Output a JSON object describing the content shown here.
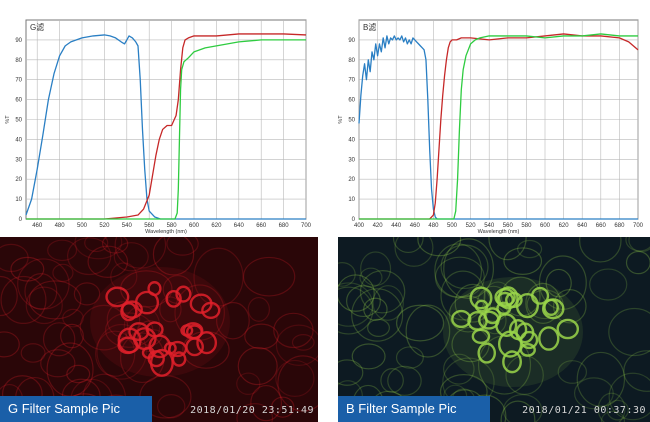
{
  "chart_data": [
    {
      "type": "line",
      "title": "G滤",
      "xlabel": "Wavelength (nm)",
      "ylabel": "%T",
      "xlim": [
        450,
        700
      ],
      "ylim": [
        0,
        100
      ],
      "x_ticks": [
        460,
        480,
        500,
        520,
        540,
        560,
        580,
        600,
        620,
        640,
        660,
        680,
        700
      ],
      "y_ticks": [
        0,
        10,
        20,
        30,
        40,
        50,
        60,
        70,
        80,
        90
      ],
      "grid": true,
      "series": [
        {
          "color": "#2a7fc4",
          "points": [
            [
              450,
              2
            ],
            [
              455,
              10
            ],
            [
              460,
              25
            ],
            [
              465,
              42
            ],
            [
              470,
              60
            ],
            [
              475,
              73
            ],
            [
              480,
              82
            ],
            [
              485,
              87
            ],
            [
              490,
              89
            ],
            [
              495,
              90
            ],
            [
              500,
              91
            ],
            [
              510,
              92
            ],
            [
              520,
              92.5
            ],
            [
              525,
              92
            ],
            [
              530,
              91
            ],
            [
              535,
              89
            ],
            [
              538,
              88
            ],
            [
              540,
              90
            ],
            [
              542,
              92
            ],
            [
              545,
              91
            ],
            [
              548,
              89
            ],
            [
              550,
              87
            ],
            [
              552,
              70
            ],
            [
              554,
              45
            ],
            [
              556,
              25
            ],
            [
              558,
              10
            ],
            [
              560,
              4
            ],
            [
              565,
              1
            ],
            [
              570,
              0
            ],
            [
              700,
              0
            ]
          ]
        },
        {
          "color": "#c62828",
          "points": [
            [
              450,
              0
            ],
            [
              520,
              0
            ],
            [
              540,
              1
            ],
            [
              550,
              2
            ],
            [
              555,
              5
            ],
            [
              560,
              12
            ],
            [
              563,
              22
            ],
            [
              566,
              32
            ],
            [
              569,
              40
            ],
            [
              572,
              45
            ],
            [
              576,
              47
            ],
            [
              580,
              47
            ],
            [
              584,
              52
            ],
            [
              586,
              60
            ],
            [
              588,
              75
            ],
            [
              590,
              86
            ],
            [
              592,
              90
            ],
            [
              595,
              91
            ],
            [
              600,
              92
            ],
            [
              620,
              92
            ],
            [
              640,
              93
            ],
            [
              660,
              93
            ],
            [
              680,
              93
            ],
            [
              700,
              92.5
            ]
          ]
        },
        {
          "color": "#2ecc40",
          "points": [
            [
              450,
              0
            ],
            [
              580,
              0
            ],
            [
              583,
              0
            ],
            [
              585,
              3
            ],
            [
              586,
              15
            ],
            [
              587,
              40
            ],
            [
              588,
              65
            ],
            [
              589,
              75
            ],
            [
              591,
              79
            ],
            [
              595,
              81
            ],
            [
              600,
              84
            ],
            [
              610,
              86
            ],
            [
              620,
              87
            ],
            [
              640,
              89
            ],
            [
              660,
              90
            ],
            [
              680,
              90
            ],
            [
              700,
              90
            ]
          ]
        }
      ]
    },
    {
      "type": "line",
      "title": "B滤",
      "xlabel": "Wavelength (nm)",
      "ylabel": "%T",
      "xlim": [
        400,
        700
      ],
      "ylim": [
        0,
        100
      ],
      "x_ticks": [
        400,
        420,
        440,
        460,
        480,
        500,
        520,
        540,
        560,
        580,
        600,
        620,
        640,
        660,
        680,
        700
      ],
      "y_ticks": [
        0,
        10,
        20,
        30,
        40,
        50,
        60,
        70,
        80,
        90
      ],
      "grid": true,
      "series": [
        {
          "color": "#2a7fc4",
          "points": [
            [
              400,
              48
            ],
            [
              402,
              62
            ],
            [
              404,
              72
            ],
            [
              406,
              78
            ],
            [
              408,
              70
            ],
            [
              410,
              80
            ],
            [
              412,
              74
            ],
            [
              414,
              84
            ],
            [
              416,
              80
            ],
            [
              418,
              88
            ],
            [
              420,
              82
            ],
            [
              422,
              88
            ],
            [
              424,
              84
            ],
            [
              426,
              91
            ],
            [
              428,
              86
            ],
            [
              430,
              92
            ],
            [
              432,
              88
            ],
            [
              434,
              91
            ],
            [
              436,
              90
            ],
            [
              438,
              92
            ],
            [
              440,
              90
            ],
            [
              442,
              91
            ],
            [
              444,
              90
            ],
            [
              446,
              92
            ],
            [
              448,
              89
            ],
            [
              450,
              91
            ],
            [
              452,
              88
            ],
            [
              454,
              90
            ],
            [
              456,
              88
            ],
            [
              458,
              91
            ],
            [
              460,
              90
            ],
            [
              462,
              89
            ],
            [
              464,
              88
            ],
            [
              466,
              87
            ],
            [
              468,
              86
            ],
            [
              470,
              85
            ],
            [
              472,
              80
            ],
            [
              474,
              60
            ],
            [
              476,
              35
            ],
            [
              478,
              15
            ],
            [
              480,
              5
            ],
            [
              482,
              1
            ],
            [
              484,
              0
            ],
            [
              700,
              0
            ]
          ]
        },
        {
          "color": "#c62828",
          "points": [
            [
              400,
              0
            ],
            [
              470,
              0
            ],
            [
              476,
              0
            ],
            [
              480,
              2
            ],
            [
              482,
              8
            ],
            [
              484,
              20
            ],
            [
              486,
              35
            ],
            [
              488,
              50
            ],
            [
              490,
              62
            ],
            [
              492,
              72
            ],
            [
              494,
              80
            ],
            [
              496,
              86
            ],
            [
              498,
              89
            ],
            [
              500,
              90
            ],
            [
              505,
              90
            ],
            [
              510,
              91
            ],
            [
              520,
              91
            ],
            [
              540,
              90
            ],
            [
              560,
              91
            ],
            [
              580,
              91
            ],
            [
              600,
              92
            ],
            [
              620,
              93
            ],
            [
              640,
              92
            ],
            [
              660,
              92
            ],
            [
              680,
              91
            ],
            [
              690,
              89
            ],
            [
              700,
              85
            ]
          ]
        },
        {
          "color": "#2ecc40",
          "points": [
            [
              400,
              0
            ],
            [
              498,
              0
            ],
            [
              502,
              0
            ],
            [
              504,
              4
            ],
            [
              506,
              20
            ],
            [
              508,
              45
            ],
            [
              510,
              65
            ],
            [
              512,
              75
            ],
            [
              515,
              82
            ],
            [
              520,
              88
            ],
            [
              525,
              90
            ],
            [
              530,
              91
            ],
            [
              540,
              92
            ],
            [
              560,
              92
            ],
            [
              580,
              92
            ],
            [
              600,
              91
            ],
            [
              620,
              92
            ],
            [
              640,
              92
            ],
            [
              660,
              93
            ],
            [
              680,
              92
            ],
            [
              700,
              92
            ]
          ]
        }
      ]
    }
  ],
  "pictures": [
    {
      "caption": "G Filter Sample Pic",
      "timestamp": "2018/01/20  23:51:49",
      "tint": "#e0202a",
      "bg": "#2a0608"
    },
    {
      "caption": "B Filter Sample Pic",
      "timestamp": "2018/01/21  00:37:30",
      "tint": "#9ad64a",
      "bg": "#0d1a22"
    }
  ]
}
